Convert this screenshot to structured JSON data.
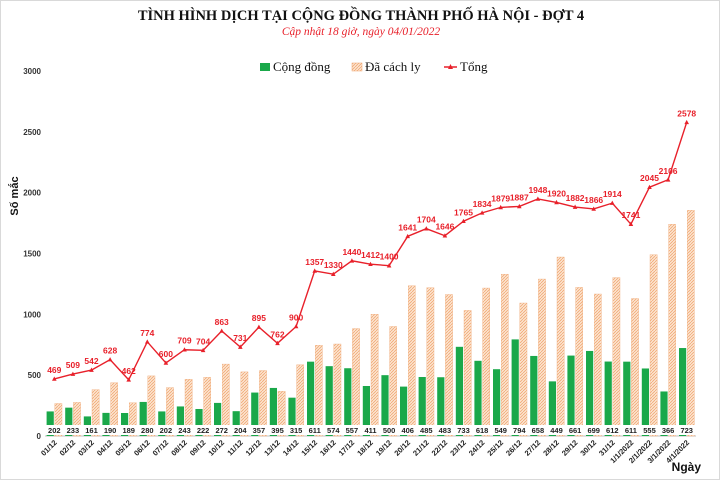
{
  "chart_data": {
    "type": "bar+line",
    "title": "TÌNH HÌNH DỊCH TẠI CỘNG ĐỒNG THÀNH PHỐ HÀ NỘI - ĐỢT 4",
    "subtitle": "Cập nhật 18 giờ, ngày 04/01/2022",
    "xlabel": "Ngày",
    "ylabel": "Số mắc",
    "ylim": [
      0,
      3000
    ],
    "yticks": [
      0,
      500,
      1000,
      1500,
      2000,
      2500,
      3000
    ],
    "grid": false,
    "legend_position": "top",
    "categories": [
      "01/12",
      "02/12",
      "03/12",
      "04/12",
      "05/12",
      "06/12",
      "07/12",
      "08/12",
      "09/12",
      "10/12",
      "11/12",
      "12/12",
      "13/12",
      "14/12",
      "15/12",
      "16/12",
      "17/12",
      "18/12",
      "19/12",
      "20/12",
      "21/12",
      "22/12",
      "23/12",
      "24/12",
      "25/12",
      "26/12",
      "27/12",
      "28/12",
      "29/12",
      "30/12",
      "31/12",
      "1/1/2022",
      "2/1/2022",
      "3/1/2022",
      "4/1/2022"
    ],
    "series": [
      {
        "name": "Cộng đồng",
        "type": "bar",
        "color": "#1aa84a",
        "values": [
          202,
          233,
          161,
          190,
          189,
          280,
          202,
          243,
          222,
          272,
          204,
          357,
          395,
          315,
          611,
          574,
          557,
          411,
          500,
          406,
          485,
          483,
          733,
          618,
          549,
          794,
          658,
          449,
          661,
          699,
          612,
          611,
          555,
          366,
          723
        ]
      },
      {
        "name": "Đã cách ly",
        "type": "bar",
        "color": "#f4b183",
        "values": [
          267,
          276,
          381,
          438,
          273,
          494,
          398,
          466,
          482,
          591,
          527,
          538,
          367,
          585,
          746,
          756,
          883,
          1001,
          900,
          1235,
          1219,
          1163,
          1032,
          1216,
          1330,
          1093,
          1290,
          1471,
          1221,
          1167,
          1302,
          1130,
          1490,
          1740,
          1855
        ]
      },
      {
        "name": "Tổng",
        "type": "line",
        "color": "#e8202a",
        "values": [
          469,
          509,
          542,
          628,
          462,
          774,
          600,
          709,
          704,
          863,
          731,
          895,
          762,
          900,
          1357,
          1330,
          1440,
          1412,
          1400,
          1641,
          1704,
          1646,
          1765,
          1834,
          1879,
          1887,
          1948,
          1920,
          1882,
          1866,
          1914,
          1741,
          2045,
          2106,
          2578
        ]
      }
    ]
  }
}
